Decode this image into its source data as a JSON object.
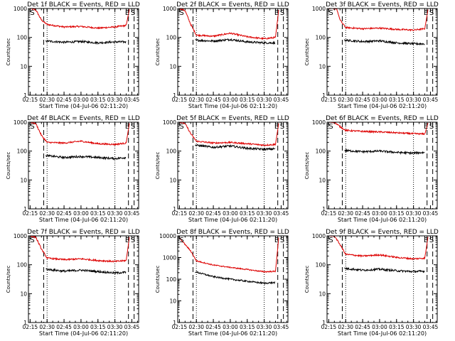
{
  "colors": {
    "events": "#000000",
    "lld": "#dd0000",
    "axis": "#000000"
  },
  "common": {
    "ylabel": "Counts/sec",
    "xlabel": "Start Time (04-Jul-06 02:11:20)",
    "xticks": [
      "02:15",
      "02:30",
      "02:45",
      "03:00",
      "03:15",
      "03:30",
      "03:45"
    ],
    "ytick_labels": [
      "1",
      "10",
      "100",
      "1000"
    ],
    "yscale": "log",
    "ylim": [
      1,
      1000
    ],
    "xlim_minutes": [
      "02:13:30",
      "03:51:00"
    ],
    "markers": {
      "start": "S",
      "end": "E"
    },
    "series_legend": {
      "events": "BLACK = Events",
      "lld": "RED = LLD"
    }
  },
  "chart_data": [
    {
      "type": "line",
      "title": "Det 1f  BLACK = Events, RED = LLD",
      "ylim": [
        1,
        1000
      ],
      "ytick_labels": [
        "1",
        "10",
        "100",
        "1000"
      ],
      "vlines": {
        "dashed": [
          "02:27",
          "03:42",
          "03:47"
        ],
        "dotted": [
          "02:30",
          "03:30"
        ]
      },
      "marker_labels": [
        {
          "text": "S",
          "x": "02:15"
        },
        {
          "text": "E",
          "x": "03:39"
        },
        {
          "text": "S",
          "x": "03:44"
        }
      ],
      "series": [
        {
          "key": "lld",
          "x": [
            "02:15",
            "02:20",
            "02:25",
            "02:30",
            "02:45",
            "03:00",
            "03:15",
            "03:30",
            "03:40",
            "03:43"
          ],
          "values": [
            1000,
            900,
            400,
            280,
            230,
            240,
            210,
            230,
            260,
            1000
          ]
        },
        {
          "key": "events",
          "x": [
            "02:29",
            "02:45",
            "03:00",
            "03:15",
            "03:30",
            "03:40"
          ],
          "values": [
            75,
            68,
            72,
            65,
            70,
            70
          ]
        }
      ]
    },
    {
      "type": "line",
      "title": "Det 2f  BLACK = Events, RED = LLD",
      "ylim": [
        1,
        1000
      ],
      "ytick_labels": [
        "1",
        "10",
        "100",
        "1000"
      ],
      "vlines": {
        "dashed": [
          "02:27",
          "03:42",
          "03:47"
        ],
        "dotted": [
          "02:30",
          "03:30"
        ]
      },
      "marker_labels": [
        {
          "text": "S",
          "x": "02:15"
        },
        {
          "text": "E",
          "x": "03:39"
        },
        {
          "text": "S",
          "x": "03:44"
        }
      ],
      "series": [
        {
          "key": "lld",
          "x": [
            "02:15",
            "02:20",
            "02:25",
            "02:30",
            "02:45",
            "03:00",
            "03:15",
            "03:30",
            "03:40",
            "03:43"
          ],
          "values": [
            1000,
            850,
            280,
            120,
            110,
            140,
            105,
            90,
            100,
            1000
          ]
        },
        {
          "key": "events",
          "x": [
            "02:29",
            "02:45",
            "03:00",
            "03:15",
            "03:30",
            "03:40"
          ],
          "values": [
            80,
            75,
            85,
            70,
            65,
            65
          ]
        }
      ]
    },
    {
      "type": "line",
      "title": "Det 3f  BLACK = Events, RED = LLD",
      "ylim": [
        1,
        1000
      ],
      "ytick_labels": [
        "1",
        "10",
        "100",
        "1000"
      ],
      "vlines": {
        "dashed": [
          "02:27",
          "03:42",
          "03:47"
        ],
        "dotted": [
          "02:30",
          "03:30"
        ]
      },
      "marker_labels": [
        {
          "text": "S",
          "x": "02:15"
        },
        {
          "text": "E",
          "x": "03:39"
        },
        {
          "text": "S",
          "x": "03:44"
        }
      ],
      "series": [
        {
          "key": "lld",
          "x": [
            "02:15",
            "02:22",
            "02:25",
            "02:30",
            "02:45",
            "03:00",
            "03:15",
            "03:30",
            "03:40",
            "03:43"
          ],
          "values": [
            1000,
            1000,
            400,
            220,
            200,
            210,
            190,
            180,
            200,
            1000
          ]
        },
        {
          "key": "events",
          "x": [
            "02:29",
            "02:45",
            "03:00",
            "03:15",
            "03:30",
            "03:40"
          ],
          "values": [
            80,
            72,
            76,
            65,
            60,
            60
          ]
        }
      ]
    },
    {
      "type": "line",
      "title": "Det 4f  BLACK = Events, RED = LLD",
      "ylim": [
        1,
        1000
      ],
      "ytick_labels": [
        "1",
        "10",
        "100",
        "1000"
      ],
      "vlines": {
        "dashed": [
          "02:27",
          "03:42",
          "03:47"
        ],
        "dotted": [
          "02:30",
          "03:30"
        ]
      },
      "marker_labels": [
        {
          "text": "S",
          "x": "02:15"
        },
        {
          "text": "E",
          "x": "03:39"
        },
        {
          "text": "S",
          "x": "03:44"
        }
      ],
      "series": [
        {
          "key": "lld",
          "x": [
            "02:15",
            "02:20",
            "02:25",
            "02:30",
            "02:45",
            "03:00",
            "03:15",
            "03:30",
            "03:40",
            "03:43"
          ],
          "values": [
            1000,
            900,
            350,
            200,
            190,
            220,
            180,
            170,
            190,
            1000
          ]
        },
        {
          "key": "events",
          "x": [
            "02:29",
            "02:45",
            "03:00",
            "03:15",
            "03:30",
            "03:40"
          ],
          "values": [
            70,
            60,
            65,
            60,
            55,
            60
          ]
        }
      ]
    },
    {
      "type": "line",
      "title": "Det 5f  BLACK = Events, RED = LLD",
      "ylim": [
        1,
        1000
      ],
      "ytick_labels": [
        "1",
        "10",
        "100",
        "1000"
      ],
      "vlines": {
        "dashed": [
          "02:27",
          "03:42",
          "03:47"
        ],
        "dotted": [
          "02:30",
          "03:30"
        ]
      },
      "marker_labels": [
        {
          "text": "S",
          "x": "02:15"
        },
        {
          "text": "E",
          "x": "03:39"
        },
        {
          "text": "S",
          "x": "03:44"
        }
      ],
      "series": [
        {
          "key": "lld",
          "x": [
            "02:15",
            "02:20",
            "02:25",
            "02:30",
            "02:45",
            "03:00",
            "03:15",
            "03:30",
            "03:40",
            "03:43"
          ],
          "values": [
            1000,
            900,
            400,
            220,
            190,
            200,
            180,
            160,
            170,
            1000
          ]
        },
        {
          "key": "events",
          "x": [
            "02:29",
            "02:45",
            "03:00",
            "03:15",
            "03:30",
            "03:40"
          ],
          "values": [
            160,
            135,
            150,
            125,
            115,
            120
          ]
        }
      ]
    },
    {
      "type": "line",
      "title": "Det 6f  BLACK = Events, RED = LLD",
      "ylim": [
        1,
        1000
      ],
      "ytick_labels": [
        "1",
        "10",
        "100",
        "1000"
      ],
      "vlines": {
        "dashed": [
          "02:27",
          "03:42",
          "03:47"
        ],
        "dotted": [
          "02:30",
          "03:30"
        ]
      },
      "marker_labels": [
        {
          "text": "S",
          "x": "02:15"
        },
        {
          "text": "E",
          "x": "03:39"
        },
        {
          "text": "S",
          "x": "03:44"
        }
      ],
      "series": [
        {
          "key": "lld",
          "x": [
            "02:15",
            "02:20",
            "02:25",
            "02:30",
            "02:45",
            "03:00",
            "03:15",
            "03:30",
            "03:40",
            "03:43"
          ],
          "values": [
            1000,
            1000,
            700,
            520,
            480,
            460,
            430,
            400,
            390,
            1000
          ]
        },
        {
          "key": "events",
          "x": [
            "02:29",
            "02:45",
            "03:00",
            "03:15",
            "03:30",
            "03:40"
          ],
          "values": [
            105,
            95,
            100,
            90,
            85,
            90
          ]
        }
      ]
    },
    {
      "type": "line",
      "title": "Det 7f  BLACK = Events, RED = LLD",
      "ylim": [
        1,
        1000
      ],
      "ytick_labels": [
        "1",
        "10",
        "100",
        "1000"
      ],
      "vlines": {
        "dashed": [
          "02:27",
          "03:42",
          "03:47"
        ],
        "dotted": [
          "02:30",
          "03:30"
        ]
      },
      "marker_labels": [
        {
          "text": "S",
          "x": "02:15"
        },
        {
          "text": "E",
          "x": "03:39"
        },
        {
          "text": "S",
          "x": "03:44"
        }
      ],
      "series": [
        {
          "key": "lld",
          "x": [
            "02:15",
            "02:20",
            "02:25",
            "02:30",
            "02:45",
            "03:00",
            "03:15",
            "03:30",
            "03:40",
            "03:43"
          ],
          "values": [
            1000,
            900,
            350,
            170,
            150,
            160,
            140,
            130,
            140,
            1000
          ]
        },
        {
          "key": "events",
          "x": [
            "02:29",
            "02:45",
            "03:00",
            "03:15",
            "03:30",
            "03:40"
          ],
          "values": [
            70,
            60,
            65,
            58,
            52,
            55
          ]
        }
      ]
    },
    {
      "type": "line",
      "title": "Det 8f  BLACK = Events, RED = LLD",
      "ylim": [
        1,
        10000
      ],
      "ytick_labels": [
        "1",
        "10",
        "100",
        "1000",
        "10000"
      ],
      "vlines": {
        "dashed": [
          "02:27",
          "03:42",
          "03:47"
        ],
        "dotted": [
          "02:30",
          "03:30"
        ]
      },
      "marker_labels": [
        {
          "text": "S",
          "x": "02:15"
        },
        {
          "text": "E",
          "x": "03:39"
        },
        {
          "text": "S",
          "x": "03:44"
        }
      ],
      "series": [
        {
          "key": "lld",
          "x": [
            "02:15",
            "02:20",
            "02:25",
            "02:30",
            "02:45",
            "03:00",
            "03:15",
            "03:30",
            "03:40",
            "03:43"
          ],
          "values": [
            8000,
            4000,
            2000,
            700,
            450,
            350,
            280,
            220,
            230,
            10000
          ]
        },
        {
          "key": "events",
          "x": [
            "02:29",
            "02:45",
            "03:00",
            "03:15",
            "03:30",
            "03:40"
          ],
          "values": [
            220,
            130,
            100,
            80,
            65,
            70
          ]
        }
      ]
    },
    {
      "type": "line",
      "title": "Det 9f  BLACK = Events, RED = LLD",
      "ylim": [
        1,
        1000
      ],
      "ytick_labels": [
        "1",
        "10",
        "100",
        "1000"
      ],
      "vlines": {
        "dashed": [
          "02:27",
          "03:42",
          "03:47"
        ],
        "dotted": [
          "02:30",
          "03:30"
        ]
      },
      "marker_labels": [
        {
          "text": "S",
          "x": "02:15"
        },
        {
          "text": "E",
          "x": "03:39"
        },
        {
          "text": "S",
          "x": "03:44"
        }
      ],
      "series": [
        {
          "key": "lld",
          "x": [
            "02:15",
            "02:20",
            "02:25",
            "02:30",
            "02:45",
            "03:00",
            "03:15",
            "03:30",
            "03:40",
            "03:43"
          ],
          "values": [
            1000,
            1000,
            500,
            230,
            200,
            220,
            180,
            160,
            170,
            1000
          ]
        },
        {
          "key": "events",
          "x": [
            "02:29",
            "02:45",
            "03:00",
            "03:15",
            "03:30",
            "03:40"
          ],
          "values": [
            75,
            65,
            70,
            62,
            58,
            60
          ]
        }
      ]
    }
  ]
}
